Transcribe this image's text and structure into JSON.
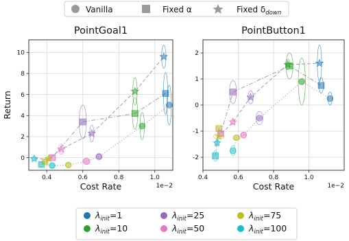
{
  "top_legend": {
    "items": [
      {
        "label": "Vanilla",
        "marker": "circle"
      },
      {
        "label": "Fixed α",
        "marker": "square"
      },
      {
        "label": "Fixed δ",
        "sub": "down",
        "marker": "star"
      }
    ]
  },
  "bottom_legend": {
    "items": [
      {
        "label": "λ",
        "sub": "init",
        "suffix": "=1",
        "color": "#1f77b4"
      },
      {
        "label": "λ",
        "sub": "init",
        "suffix": "=25",
        "color": "#9467bd"
      },
      {
        "label": "λ",
        "sub": "init",
        "suffix": "=75",
        "color": "#bcbd22"
      },
      {
        "label": "λ",
        "sub": "init",
        "suffix": "=10",
        "color": "#2ca02c"
      },
      {
        "label": "λ",
        "sub": "init",
        "suffix": "=50",
        "color": "#e377c2"
      },
      {
        "label": "λ",
        "sub": "init",
        "suffix": "=100",
        "color": "#17becf"
      }
    ]
  },
  "chart_data": [
    {
      "type": "scatter",
      "title": "PointGoal1",
      "xlabel": "Cost Rate",
      "ylabel": "Return",
      "x_scale_note": "1e−2",
      "xlim": [
        0.3,
        1.1
      ],
      "ylim": [
        -1.2,
        11.2
      ],
      "xticks": [
        0.4,
        0.6,
        0.8,
        1.0
      ],
      "yticks": [
        0,
        2,
        4,
        6,
        8,
        10
      ],
      "grid": true,
      "colors": {
        "1": "#1f77b4",
        "10": "#2ca02c",
        "25": "#9467bd",
        "50": "#e377c2",
        "75": "#bcbd22",
        "100": "#17becf"
      },
      "series": [
        {
          "method": "Vanilla",
          "marker": "circle",
          "line": "dotted",
          "points": [
            {
              "lambda": "100",
              "x": 0.43,
              "y": -0.75,
              "sx": 0.012,
              "sy": 0.2
            },
            {
              "lambda": "75",
              "x": 0.52,
              "y": -0.7,
              "sx": 0.015,
              "sy": 0.2
            },
            {
              "lambda": "50",
              "x": 0.62,
              "y": -0.35,
              "sx": 0.02,
              "sy": 0.3
            },
            {
              "lambda": "25",
              "x": 0.69,
              "y": 0.1,
              "sx": 0.015,
              "sy": 0.25
            },
            {
              "lambda": "10",
              "x": 0.93,
              "y": 3.0,
              "sx": 0.012,
              "sy": 1.3
            },
            {
              "lambda": "1",
              "x": 1.08,
              "y": 5.0,
              "sx": 0.012,
              "sy": 1.9
            }
          ]
        },
        {
          "method": "Fixed α",
          "marker": "square",
          "line": "dashdot",
          "points": [
            {
              "lambda": "100",
              "x": 0.37,
              "y": -0.65,
              "sx": 0.012,
              "sy": 0.2
            },
            {
              "lambda": "75",
              "x": 0.39,
              "y": -0.4,
              "sx": 0.012,
              "sy": 0.2
            },
            {
              "lambda": "50",
              "x": 0.43,
              "y": 0.0,
              "sx": 0.02,
              "sy": 0.3
            },
            {
              "lambda": "25",
              "x": 0.6,
              "y": 3.4,
              "sx": 0.02,
              "sy": 1.6
            },
            {
              "lambda": "10",
              "x": 0.89,
              "y": 4.2,
              "sx": 0.015,
              "sy": 1.5
            },
            {
              "lambda": "1",
              "x": 1.06,
              "y": 6.1,
              "sx": 0.012,
              "sy": 2.0
            }
          ]
        },
        {
          "method": "Fixed δdown",
          "marker": "star",
          "line": "dashed",
          "points": [
            {
              "lambda": "100",
              "x": 0.33,
              "y": -0.1,
              "sx": 0.015,
              "sy": 0.2
            },
            {
              "lambda": "75",
              "x": 0.41,
              "y": -0.1,
              "sx": 0.015,
              "sy": 0.2
            },
            {
              "lambda": "50",
              "x": 0.48,
              "y": 0.8,
              "sx": 0.015,
              "sy": 0.5
            },
            {
              "lambda": "25",
              "x": 0.65,
              "y": 2.3,
              "sx": 0.012,
              "sy": 0.8
            },
            {
              "lambda": "10",
              "x": 0.89,
              "y": 6.3,
              "sx": 0.012,
              "sy": 1.3
            },
            {
              "lambda": "1",
              "x": 1.05,
              "y": 9.6,
              "sx": 0.012,
              "sy": 1.1
            }
          ]
        }
      ]
    },
    {
      "type": "scatter",
      "title": "PointButton1",
      "xlabel": "Cost Rate",
      "ylabel": "",
      "x_scale_note": "1e−2",
      "xlim": [
        0.4,
        1.2
      ],
      "ylim": [
        -2.5,
        2.5
      ],
      "xticks": [
        0.4,
        0.6,
        0.8,
        1.0
      ],
      "yticks": [
        -2,
        -1,
        0,
        1,
        2
      ],
      "grid": true,
      "colors": {
        "1": "#1f77b4",
        "10": "#2ca02c",
        "25": "#9467bd",
        "50": "#e377c2",
        "75": "#bcbd22",
        "100": "#17becf"
      },
      "series": [
        {
          "method": "Vanilla",
          "marker": "circle",
          "line": "dotted",
          "points": [
            {
              "lambda": "100",
              "x": 0.57,
              "y": -1.75,
              "sx": 0.015,
              "sy": 0.18
            },
            {
              "lambda": "75",
              "x": 0.59,
              "y": -1.25,
              "sx": 0.02,
              "sy": 0.08
            },
            {
              "lambda": "50",
              "x": 0.63,
              "y": -1.15,
              "sx": 0.015,
              "sy": 0.12
            },
            {
              "lambda": "25",
              "x": 0.72,
              "y": -0.5,
              "sx": 0.02,
              "sy": 0.25
            },
            {
              "lambda": "10",
              "x": 0.96,
              "y": 0.9,
              "sx": 0.02,
              "sy": 0.9
            },
            {
              "lambda": "1",
              "x": 1.12,
              "y": 0.25,
              "sx": 0.012,
              "sy": 0.25
            }
          ]
        },
        {
          "method": "Fixed α",
          "marker": "square",
          "line": "dashdot",
          "points": [
            {
              "lambda": "100",
              "x": 0.47,
              "y": -1.95,
              "sx": 0.012,
              "sy": 0.2
            },
            {
              "lambda": "75",
              "x": 0.49,
              "y": -0.9,
              "sx": 0.015,
              "sy": 0.12
            },
            {
              "lambda": "50",
              "x": 0.5,
              "y": -1.1,
              "sx": 0.015,
              "sy": 0.12
            },
            {
              "lambda": "25",
              "x": 0.57,
              "y": 0.5,
              "sx": 0.02,
              "sy": 0.45
            },
            {
              "lambda": "10",
              "x": 0.89,
              "y": 1.5,
              "sx": 0.02,
              "sy": 0.5
            },
            {
              "lambda": "1",
              "x": 1.07,
              "y": 0.75,
              "sx": 0.012,
              "sy": 0.3
            }
          ]
        },
        {
          "method": "Fixed δdown",
          "marker": "star",
          "line": "dashed",
          "points": [
            {
              "lambda": "100",
              "x": 0.48,
              "y": -1.45,
              "sx": 0.012,
              "sy": 0.12
            },
            {
              "lambda": "75",
              "x": 0.49,
              "y": -1.2,
              "sx": 0.03,
              "sy": 0.1
            },
            {
              "lambda": "50",
              "x": 0.57,
              "y": -0.65,
              "sx": 0.012,
              "sy": 0.1
            },
            {
              "lambda": "25",
              "x": 0.67,
              "y": 0.3,
              "sx": 0.015,
              "sy": 0.25
            },
            {
              "lambda": "10",
              "x": 0.88,
              "y": 1.55,
              "sx": 0.012,
              "sy": 0.2
            },
            {
              "lambda": "1",
              "x": 1.06,
              "y": 1.6,
              "sx": 0.012,
              "sy": 0.7
            }
          ]
        }
      ]
    }
  ]
}
